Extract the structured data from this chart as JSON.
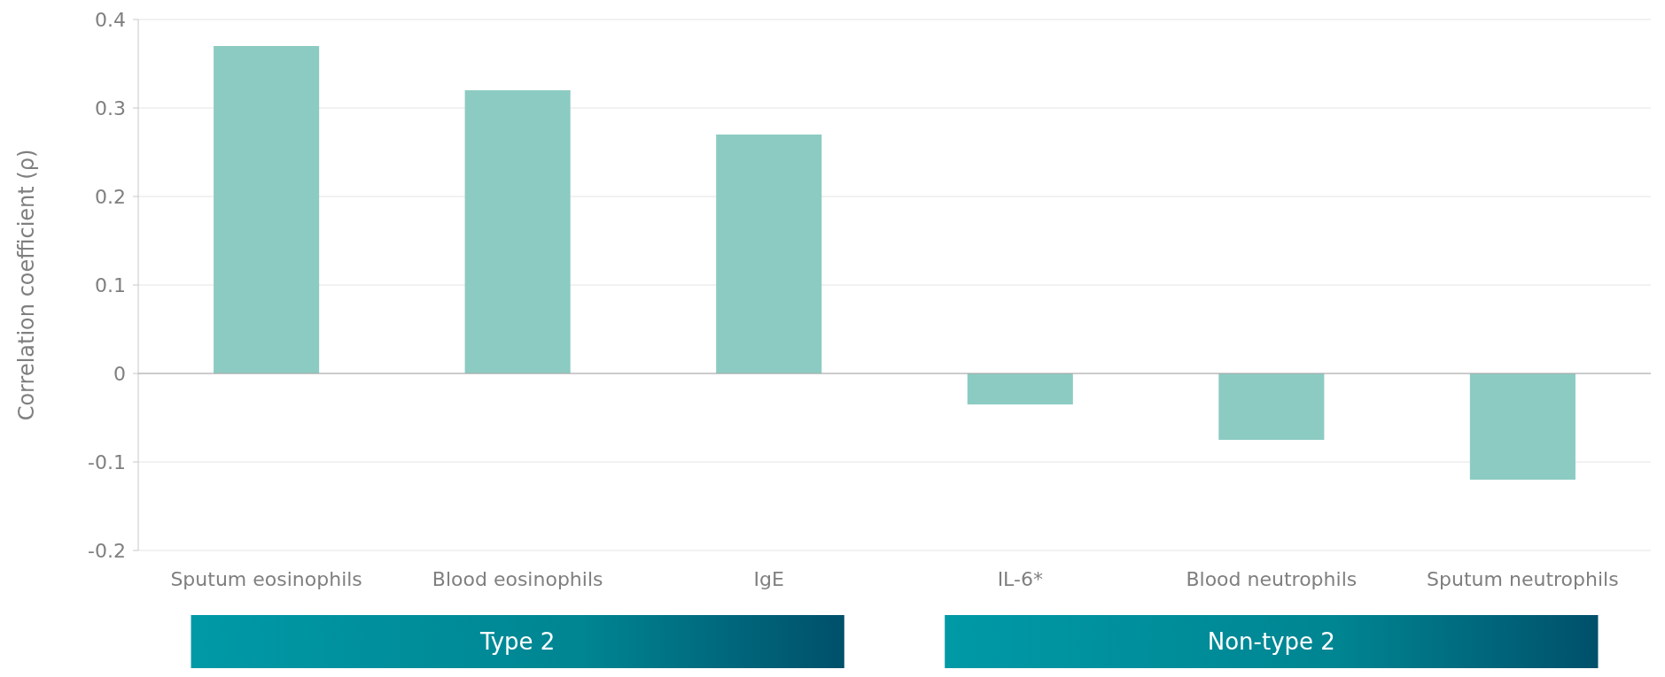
{
  "chart_data": {
    "type": "bar",
    "ylabel": "Correlation coefficient (ρ)",
    "categories": [
      "Sputum eosinophils",
      "Blood eosinophils",
      "IgE",
      "IL-6*",
      "Blood neutrophils",
      "Sputum neutrophils"
    ],
    "values": [
      0.37,
      0.32,
      0.27,
      -0.035,
      -0.075,
      -0.12
    ],
    "color": "#8ccbc2",
    "ylim": [
      -0.2,
      0.4
    ],
    "yticks": [
      -0.2,
      -0.1,
      0,
      0.1,
      0.2,
      0.3,
      0.4
    ],
    "grid": "y",
    "annotations": [
      "Type 2",
      "Non-type 2"
    ]
  }
}
